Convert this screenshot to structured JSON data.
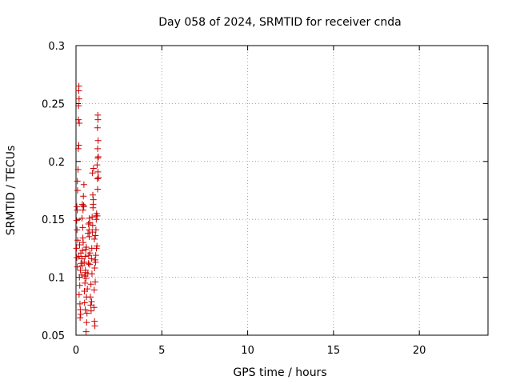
{
  "chart_data": {
    "type": "scatter",
    "title": "Day 058 of 2024, SRMTID for receiver cnda",
    "xlabel": "GPS time / hours",
    "ylabel": "SRMTID / TECUs",
    "xlim": [
      0,
      24
    ],
    "ylim": [
      0.05,
      0.3
    ],
    "xticks": [
      0,
      5,
      10,
      15,
      20
    ],
    "xtick_labels": [
      "0",
      "5",
      "10",
      "15",
      "20"
    ],
    "yticks": [
      0.05,
      0.1,
      0.15,
      0.2,
      0.25,
      0.3
    ],
    "ytick_labels": [
      "0.05",
      "0.1",
      "0.15",
      "0.2",
      "0.25",
      "0.3"
    ],
    "grid": true,
    "marker": "+",
    "color": "#cc0000",
    "series": [
      {
        "name": "SRMTID",
        "points": [
          [
            0.08,
            0.109
          ],
          [
            0.05,
            0.117
          ],
          [
            0.03,
            0.125
          ],
          [
            0.1,
            0.132
          ],
          [
            0.06,
            0.141
          ],
          [
            0.04,
            0.149
          ],
          [
            0.07,
            0.158
          ],
          [
            0.05,
            0.161
          ],
          [
            0.09,
            0.175
          ],
          [
            0.08,
            0.183
          ],
          [
            0.12,
            0.193
          ],
          [
            0.13,
            0.211
          ],
          [
            0.16,
            0.214
          ],
          [
            0.14,
            0.236
          ],
          [
            0.19,
            0.233
          ],
          [
            0.15,
            0.248
          ],
          [
            0.18,
            0.254
          ],
          [
            0.16,
            0.261
          ],
          [
            0.17,
            0.265
          ],
          [
            0.17,
            0.118
          ],
          [
            0.2,
            0.1
          ],
          [
            0.22,
            0.093
          ],
          [
            0.18,
            0.085
          ],
          [
            0.23,
            0.077
          ],
          [
            0.25,
            0.072
          ],
          [
            0.27,
            0.068
          ],
          [
            0.24,
            0.065
          ],
          [
            0.26,
            0.106
          ],
          [
            0.29,
            0.112
          ],
          [
            0.28,
            0.121
          ],
          [
            0.21,
            0.128
          ],
          [
            0.33,
            0.102
          ],
          [
            0.36,
            0.11
          ],
          [
            0.34,
            0.116
          ],
          [
            0.38,
            0.123
          ],
          [
            0.4,
            0.134
          ],
          [
            0.42,
            0.13
          ],
          [
            0.39,
            0.143
          ],
          [
            0.35,
            0.151
          ],
          [
            0.41,
            0.158
          ],
          [
            0.37,
            0.163
          ],
          [
            0.44,
            0.162
          ],
          [
            0.43,
            0.17
          ],
          [
            0.46,
            0.18
          ],
          [
            0.45,
            0.161
          ],
          [
            0.49,
            0.088
          ],
          [
            0.52,
            0.095
          ],
          [
            0.51,
            0.101
          ],
          [
            0.55,
            0.106
          ],
          [
            0.48,
            0.113
          ],
          [
            0.53,
            0.118
          ],
          [
            0.57,
            0.124
          ],
          [
            0.6,
            0.126
          ],
          [
            0.56,
            0.104
          ],
          [
            0.58,
            0.099
          ],
          [
            0.5,
            0.078
          ],
          [
            0.54,
            0.072
          ],
          [
            0.61,
            0.083
          ],
          [
            0.64,
            0.069
          ],
          [
            0.62,
            0.061
          ],
          [
            0.59,
            0.053
          ],
          [
            0.66,
            0.09
          ],
          [
            0.69,
            0.103
          ],
          [
            0.72,
            0.112
          ],
          [
            0.74,
            0.119
          ],
          [
            0.7,
            0.138
          ],
          [
            0.76,
            0.141
          ],
          [
            0.73,
            0.146
          ],
          [
            0.78,
            0.151
          ],
          [
            0.8,
            0.147
          ],
          [
            0.77,
            0.135
          ],
          [
            0.81,
            0.121
          ],
          [
            0.79,
            0.111
          ],
          [
            0.84,
            0.083
          ],
          [
            0.86,
            0.076
          ],
          [
            0.88,
            0.071
          ],
          [
            0.91,
            0.079
          ],
          [
            0.87,
            0.094
          ],
          [
            0.93,
            0.103
          ],
          [
            0.9,
            0.116
          ],
          [
            0.92,
            0.125
          ],
          [
            0.95,
            0.139
          ],
          [
            0.97,
            0.145
          ],
          [
            0.94,
            0.152
          ],
          [
            0.99,
            0.16
          ],
          [
            1.01,
            0.167
          ],
          [
            0.98,
            0.171
          ],
          [
            1.0,
            0.163
          ],
          [
            0.96,
            0.19
          ],
          [
            1.02,
            0.194
          ],
          [
            1.05,
            0.074
          ],
          [
            1.08,
            0.062
          ],
          [
            1.1,
            0.058
          ],
          [
            1.06,
            0.089
          ],
          [
            1.12,
            0.096
          ],
          [
            1.09,
            0.108
          ],
          [
            1.14,
            0.113
          ],
          [
            1.11,
            0.115
          ],
          [
            1.15,
            0.119
          ],
          [
            1.07,
            0.133
          ],
          [
            1.13,
            0.136
          ],
          [
            1.16,
            0.141
          ],
          [
            1.18,
            0.15
          ],
          [
            1.2,
            0.155
          ],
          [
            1.17,
            0.153
          ],
          [
            1.19,
            0.125
          ],
          [
            1.22,
            0.127
          ],
          [
            1.24,
            0.153
          ],
          [
            1.26,
            0.176
          ],
          [
            1.25,
            0.185
          ],
          [
            1.28,
            0.191
          ],
          [
            1.23,
            0.197
          ],
          [
            1.27,
            0.203
          ],
          [
            1.26,
            0.211
          ],
          [
            1.29,
            0.218
          ],
          [
            1.25,
            0.229
          ],
          [
            1.28,
            0.236
          ],
          [
            1.27,
            0.24
          ],
          [
            1.3,
            0.204
          ],
          [
            1.31,
            0.186
          ]
        ]
      }
    ]
  }
}
